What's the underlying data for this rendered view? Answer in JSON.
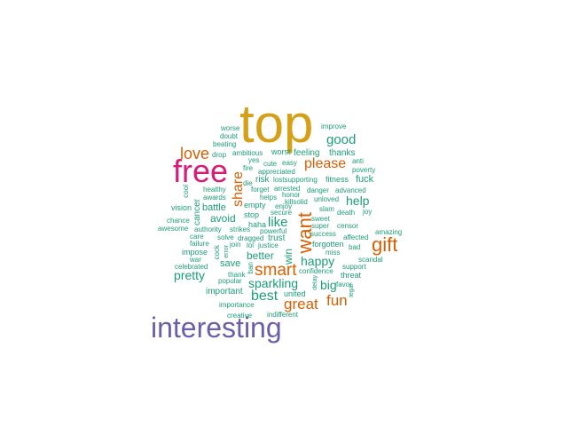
{
  "colors": {
    "gold": "#d4a017",
    "magenta": "#d61c78",
    "orange": "#d95f02",
    "purple": "#6a5fa8",
    "green": "#1b9e77"
  },
  "words": [
    {
      "text": "top",
      "color": "gold"
    },
    {
      "text": "free",
      "color": "magenta"
    },
    {
      "text": "interesting",
      "color": "purple"
    },
    {
      "text": "gift",
      "color": "orange"
    },
    {
      "text": "want",
      "color": "orange"
    },
    {
      "text": "smart",
      "color": "orange"
    },
    {
      "text": "love",
      "color": "orange"
    },
    {
      "text": "please",
      "color": "orange"
    },
    {
      "text": "share",
      "color": "orange"
    },
    {
      "text": "great",
      "color": "orange"
    },
    {
      "text": "fun",
      "color": "orange"
    },
    {
      "text": "good",
      "color": "green"
    },
    {
      "text": "help",
      "color": "green"
    },
    {
      "text": "sparkling",
      "color": "green"
    },
    {
      "text": "best",
      "color": "green"
    },
    {
      "text": "happy",
      "color": "green"
    },
    {
      "text": "pretty",
      "color": "green"
    },
    {
      "text": "big",
      "color": "green"
    },
    {
      "text": "like",
      "color": "green"
    },
    {
      "text": "better",
      "color": "green"
    },
    {
      "text": "thanks",
      "color": "green"
    },
    {
      "text": "feeling",
      "color": "green"
    },
    {
      "text": "fuck",
      "color": "green"
    },
    {
      "text": "avoid",
      "color": "green"
    },
    {
      "text": "battle",
      "color": "green"
    },
    {
      "text": "win",
      "color": "green"
    },
    {
      "text": "save",
      "color": "green"
    },
    {
      "text": "important",
      "color": "green"
    },
    {
      "text": "improve",
      "color": "green"
    },
    {
      "text": "worse",
      "color": "green"
    },
    {
      "text": "doubt",
      "color": "green"
    },
    {
      "text": "beating",
      "color": "green"
    },
    {
      "text": "drop",
      "color": "green"
    },
    {
      "text": "ambitious",
      "color": "green"
    },
    {
      "text": "worst",
      "color": "green"
    },
    {
      "text": "yes",
      "color": "green"
    },
    {
      "text": "cute",
      "color": "green"
    },
    {
      "text": "easy",
      "color": "green"
    },
    {
      "text": "fire",
      "color": "green"
    },
    {
      "text": "appreciated",
      "color": "green"
    },
    {
      "text": "anti",
      "color": "green"
    },
    {
      "text": "poverty",
      "color": "green"
    },
    {
      "text": "risk",
      "color": "green"
    },
    {
      "text": "lostsupporting",
      "color": "green"
    },
    {
      "text": "die",
      "color": "green"
    },
    {
      "text": "fitness",
      "color": "green"
    },
    {
      "text": "healthy",
      "color": "green"
    },
    {
      "text": "forget",
      "color": "green"
    },
    {
      "text": "arrested",
      "color": "green"
    },
    {
      "text": "danger",
      "color": "green"
    },
    {
      "text": "advanced",
      "color": "green"
    },
    {
      "text": "cool",
      "color": "green"
    },
    {
      "text": "awards",
      "color": "green"
    },
    {
      "text": "helps",
      "color": "green"
    },
    {
      "text": "honor",
      "color": "green"
    },
    {
      "text": "killsolid",
      "color": "green"
    },
    {
      "text": "unloved",
      "color": "green"
    },
    {
      "text": "vision",
      "color": "green"
    },
    {
      "text": "cancer",
      "color": "green"
    },
    {
      "text": "empty",
      "color": "green"
    },
    {
      "text": "enjoy",
      "color": "green"
    },
    {
      "text": "slam",
      "color": "green"
    },
    {
      "text": "death",
      "color": "green"
    },
    {
      "text": "joy",
      "color": "green"
    },
    {
      "text": "chance",
      "color": "green"
    },
    {
      "text": "stop",
      "color": "green"
    },
    {
      "text": "secure",
      "color": "green"
    },
    {
      "text": "sweet",
      "color": "green"
    },
    {
      "text": "awesome",
      "color": "green"
    },
    {
      "text": "haha",
      "color": "green"
    },
    {
      "text": "super",
      "color": "green"
    },
    {
      "text": "censor",
      "color": "green"
    },
    {
      "text": "authority",
      "color": "green"
    },
    {
      "text": "strikes",
      "color": "green"
    },
    {
      "text": "powerful",
      "color": "green"
    },
    {
      "text": "success",
      "color": "green"
    },
    {
      "text": "amazing",
      "color": "green"
    },
    {
      "text": "care",
      "color": "green"
    },
    {
      "text": "solve",
      "color": "green"
    },
    {
      "text": "dragged",
      "color": "green"
    },
    {
      "text": "trust",
      "color": "green"
    },
    {
      "text": "affected",
      "color": "green"
    },
    {
      "text": "failure",
      "color": "green"
    },
    {
      "text": "join",
      "color": "green"
    },
    {
      "text": "lol",
      "color": "green"
    },
    {
      "text": "justice",
      "color": "green"
    },
    {
      "text": "forgotten",
      "color": "green"
    },
    {
      "text": "bad",
      "color": "green"
    },
    {
      "text": "impose",
      "color": "green"
    },
    {
      "text": "error",
      "color": "green"
    },
    {
      "text": "miss",
      "color": "green"
    },
    {
      "text": "war",
      "color": "green"
    },
    {
      "text": "cock",
      "color": "green"
    },
    {
      "text": "scandal",
      "color": "green"
    },
    {
      "text": "celebrated",
      "color": "green"
    },
    {
      "text": "support",
      "color": "green"
    },
    {
      "text": "thank",
      "color": "green"
    },
    {
      "text": "ban",
      "color": "green"
    },
    {
      "text": "threat",
      "color": "green"
    },
    {
      "text": "popular",
      "color": "green"
    },
    {
      "text": "legal",
      "color": "green"
    },
    {
      "text": "united",
      "color": "green"
    },
    {
      "text": "confidence",
      "color": "green"
    },
    {
      "text": "favor",
      "color": "green"
    },
    {
      "text": "importance",
      "color": "green"
    },
    {
      "text": "delay",
      "color": "green"
    },
    {
      "text": "creative",
      "color": "green"
    },
    {
      "text": "indifferent",
      "color": "green"
    }
  ]
}
